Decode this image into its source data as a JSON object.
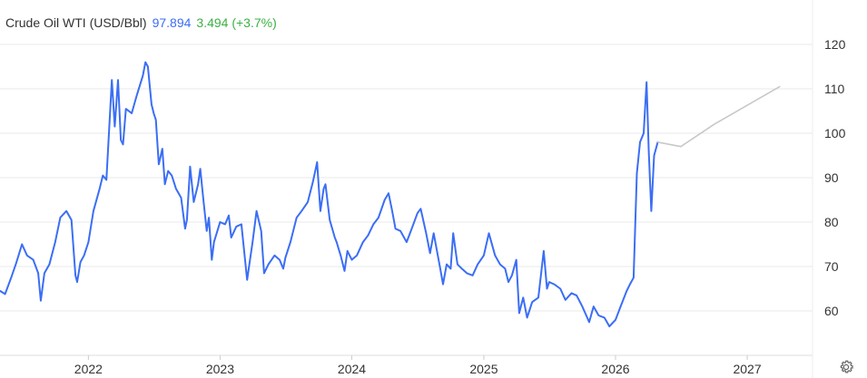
{
  "legend": {
    "name": "Crude Oil WTI (USD/Bbl)",
    "value": "97.894",
    "change": "3.494 (+3.7%)",
    "value_color": "#3b6ef5",
    "change_color": "#3cb044"
  },
  "icons": {
    "settings": "gear-icon"
  },
  "chart_data": {
    "type": "line",
    "title": "",
    "xlabel": "",
    "ylabel": "",
    "ylim": [
      50,
      130
    ],
    "xlim": [
      "2021-05-01",
      "2027-07-01"
    ],
    "y_ticks": [
      60,
      70,
      80,
      90,
      100,
      110,
      120
    ],
    "x_ticks": [
      {
        "date": "2022-01-01",
        "label": "2022"
      },
      {
        "date": "2023-01-01",
        "label": "2023"
      },
      {
        "date": "2024-01-01",
        "label": "2024"
      },
      {
        "date": "2025-01-01",
        "label": "2025"
      },
      {
        "date": "2026-01-01",
        "label": "2026"
      },
      {
        "date": "2027-01-01",
        "label": "2027"
      }
    ],
    "grid": true,
    "series": [
      {
        "color": "#3b6ef5",
        "points": [
          [
            "2021-05-01",
            64.5
          ],
          [
            "2021-05-15",
            63.8
          ],
          [
            "2021-06-01",
            67.5
          ],
          [
            "2021-06-15",
            70.8
          ],
          [
            "2021-07-01",
            75.0
          ],
          [
            "2021-07-15",
            72.5
          ],
          [
            "2021-08-01",
            71.5
          ],
          [
            "2021-08-15",
            68.5
          ],
          [
            "2021-08-22",
            62.3
          ],
          [
            "2021-09-01",
            68.5
          ],
          [
            "2021-09-15",
            70.5
          ],
          [
            "2021-10-01",
            75.5
          ],
          [
            "2021-10-15",
            81.0
          ],
          [
            "2021-11-01",
            82.5
          ],
          [
            "2021-11-15",
            80.5
          ],
          [
            "2021-11-26",
            68.0
          ],
          [
            "2021-12-01",
            66.5
          ],
          [
            "2021-12-10",
            71.0
          ],
          [
            "2021-12-20",
            72.5
          ],
          [
            "2022-01-01",
            75.5
          ],
          [
            "2022-01-15",
            82.5
          ],
          [
            "2022-02-01",
            87.5
          ],
          [
            "2022-02-10",
            90.5
          ],
          [
            "2022-02-20",
            89.5
          ],
          [
            "2022-03-01",
            103.0
          ],
          [
            "2022-03-07",
            112.0
          ],
          [
            "2022-03-15",
            101.5
          ],
          [
            "2022-03-24",
            112.0
          ],
          [
            "2022-04-01",
            98.5
          ],
          [
            "2022-04-07",
            97.5
          ],
          [
            "2022-04-15",
            105.5
          ],
          [
            "2022-05-01",
            104.5
          ],
          [
            "2022-05-15",
            108.5
          ],
          [
            "2022-06-01",
            113.0
          ],
          [
            "2022-06-08",
            116.0
          ],
          [
            "2022-06-15",
            115.0
          ],
          [
            "2022-06-25",
            106.5
          ],
          [
            "2022-07-01",
            104.5
          ],
          [
            "2022-07-07",
            103.0
          ],
          [
            "2022-07-15",
            93.0
          ],
          [
            "2022-07-25",
            96.5
          ],
          [
            "2022-08-01",
            88.5
          ],
          [
            "2022-08-10",
            91.5
          ],
          [
            "2022-08-20",
            90.5
          ],
          [
            "2022-09-01",
            87.5
          ],
          [
            "2022-09-15",
            85.5
          ],
          [
            "2022-09-26",
            78.5
          ],
          [
            "2022-10-01",
            80.5
          ],
          [
            "2022-10-10",
            92.5
          ],
          [
            "2022-10-20",
            84.5
          ],
          [
            "2022-11-01",
            88.5
          ],
          [
            "2022-11-07",
            92.0
          ],
          [
            "2022-11-15",
            85.5
          ],
          [
            "2022-11-25",
            78.0
          ],
          [
            "2022-12-01",
            81.0
          ],
          [
            "2022-12-09",
            71.5
          ],
          [
            "2022-12-15",
            75.5
          ],
          [
            "2023-01-01",
            80.0
          ],
          [
            "2023-01-15",
            79.5
          ],
          [
            "2023-01-25",
            81.5
          ],
          [
            "2023-02-01",
            76.5
          ],
          [
            "2023-02-15",
            79.0
          ],
          [
            "2023-03-01",
            79.5
          ],
          [
            "2023-03-17",
            67.0
          ],
          [
            "2023-04-01",
            75.5
          ],
          [
            "2023-04-12",
            82.5
          ],
          [
            "2023-04-25",
            78.0
          ],
          [
            "2023-05-03",
            68.5
          ],
          [
            "2023-05-15",
            70.5
          ],
          [
            "2023-06-01",
            72.5
          ],
          [
            "2023-06-15",
            71.5
          ],
          [
            "2023-06-25",
            69.5
          ],
          [
            "2023-07-01",
            72.0
          ],
          [
            "2023-07-15",
            75.5
          ],
          [
            "2023-08-01",
            81.0
          ],
          [
            "2023-08-15",
            82.5
          ],
          [
            "2023-09-01",
            84.5
          ],
          [
            "2023-09-15",
            89.0
          ],
          [
            "2023-09-27",
            93.5
          ],
          [
            "2023-10-01",
            88.5
          ],
          [
            "2023-10-06",
            82.5
          ],
          [
            "2023-10-15",
            87.5
          ],
          [
            "2023-10-20",
            88.5
          ],
          [
            "2023-11-01",
            80.5
          ],
          [
            "2023-11-15",
            76.5
          ],
          [
            "2023-11-20",
            75.5
          ],
          [
            "2023-12-01",
            72.5
          ],
          [
            "2023-12-12",
            69.0
          ],
          [
            "2023-12-20",
            73.5
          ],
          [
            "2024-01-01",
            71.5
          ],
          [
            "2024-01-15",
            72.5
          ],
          [
            "2024-02-01",
            75.5
          ],
          [
            "2024-02-15",
            77.0
          ],
          [
            "2024-03-01",
            79.5
          ],
          [
            "2024-03-15",
            81.0
          ],
          [
            "2024-04-01",
            85.0
          ],
          [
            "2024-04-12",
            86.5
          ],
          [
            "2024-04-22",
            82.5
          ],
          [
            "2024-05-01",
            78.5
          ],
          [
            "2024-05-15",
            78.0
          ],
          [
            "2024-06-01",
            75.5
          ],
          [
            "2024-06-15",
            78.5
          ],
          [
            "2024-07-01",
            82.0
          ],
          [
            "2024-07-10",
            83.0
          ],
          [
            "2024-07-25",
            77.5
          ],
          [
            "2024-08-05",
            73.0
          ],
          [
            "2024-08-15",
            77.5
          ],
          [
            "2024-09-01",
            70.0
          ],
          [
            "2024-09-10",
            66.0
          ],
          [
            "2024-09-20",
            70.5
          ],
          [
            "2024-10-01",
            69.5
          ],
          [
            "2024-10-08",
            77.5
          ],
          [
            "2024-10-20",
            70.5
          ],
          [
            "2024-11-01",
            69.5
          ],
          [
            "2024-11-15",
            68.5
          ],
          [
            "2024-12-01",
            68.0
          ],
          [
            "2024-12-15",
            70.5
          ],
          [
            "2025-01-01",
            72.5
          ],
          [
            "2025-01-15",
            77.5
          ],
          [
            "2025-02-01",
            72.5
          ],
          [
            "2025-02-15",
            70.5
          ],
          [
            "2025-03-01",
            69.5
          ],
          [
            "2025-03-10",
            66.5
          ],
          [
            "2025-03-20",
            68.0
          ],
          [
            "2025-04-01",
            71.5
          ],
          [
            "2025-04-09",
            59.5
          ],
          [
            "2025-04-20",
            63.0
          ],
          [
            "2025-05-01",
            58.5
          ],
          [
            "2025-05-15",
            62.0
          ],
          [
            "2025-06-01",
            63.0
          ],
          [
            "2025-06-16",
            73.5
          ],
          [
            "2025-06-25",
            65.0
          ],
          [
            "2025-07-01",
            66.5
          ],
          [
            "2025-07-15",
            66.0
          ],
          [
            "2025-08-01",
            65.0
          ],
          [
            "2025-08-15",
            62.5
          ],
          [
            "2025-09-01",
            64.0
          ],
          [
            "2025-09-15",
            63.5
          ],
          [
            "2025-10-01",
            61.0
          ],
          [
            "2025-10-20",
            57.5
          ],
          [
            "2025-11-01",
            61.0
          ],
          [
            "2025-11-15",
            59.0
          ],
          [
            "2025-12-01",
            58.5
          ],
          [
            "2025-12-15",
            56.5
          ],
          [
            "2026-01-01",
            58.0
          ],
          [
            "2026-01-15",
            61.0
          ],
          [
            "2026-02-01",
            64.5
          ],
          [
            "2026-02-10",
            66.0
          ],
          [
            "2026-02-20",
            67.5
          ],
          [
            "2026-03-01",
            91.0
          ],
          [
            "2026-03-10",
            98.0
          ],
          [
            "2026-03-20",
            100.0
          ],
          [
            "2026-03-28",
            111.5
          ],
          [
            "2026-04-03",
            96.0
          ],
          [
            "2026-04-10",
            82.5
          ],
          [
            "2026-04-18",
            95.0
          ],
          [
            "2026-04-28",
            98.0
          ]
        ]
      },
      {
        "color": "#c8c8c8",
        "points": [
          [
            "2026-04-28",
            98.0
          ],
          [
            "2026-07-01",
            97.0
          ],
          [
            "2026-10-01",
            102.0
          ],
          [
            "2027-04-01",
            110.5
          ]
        ]
      }
    ]
  }
}
